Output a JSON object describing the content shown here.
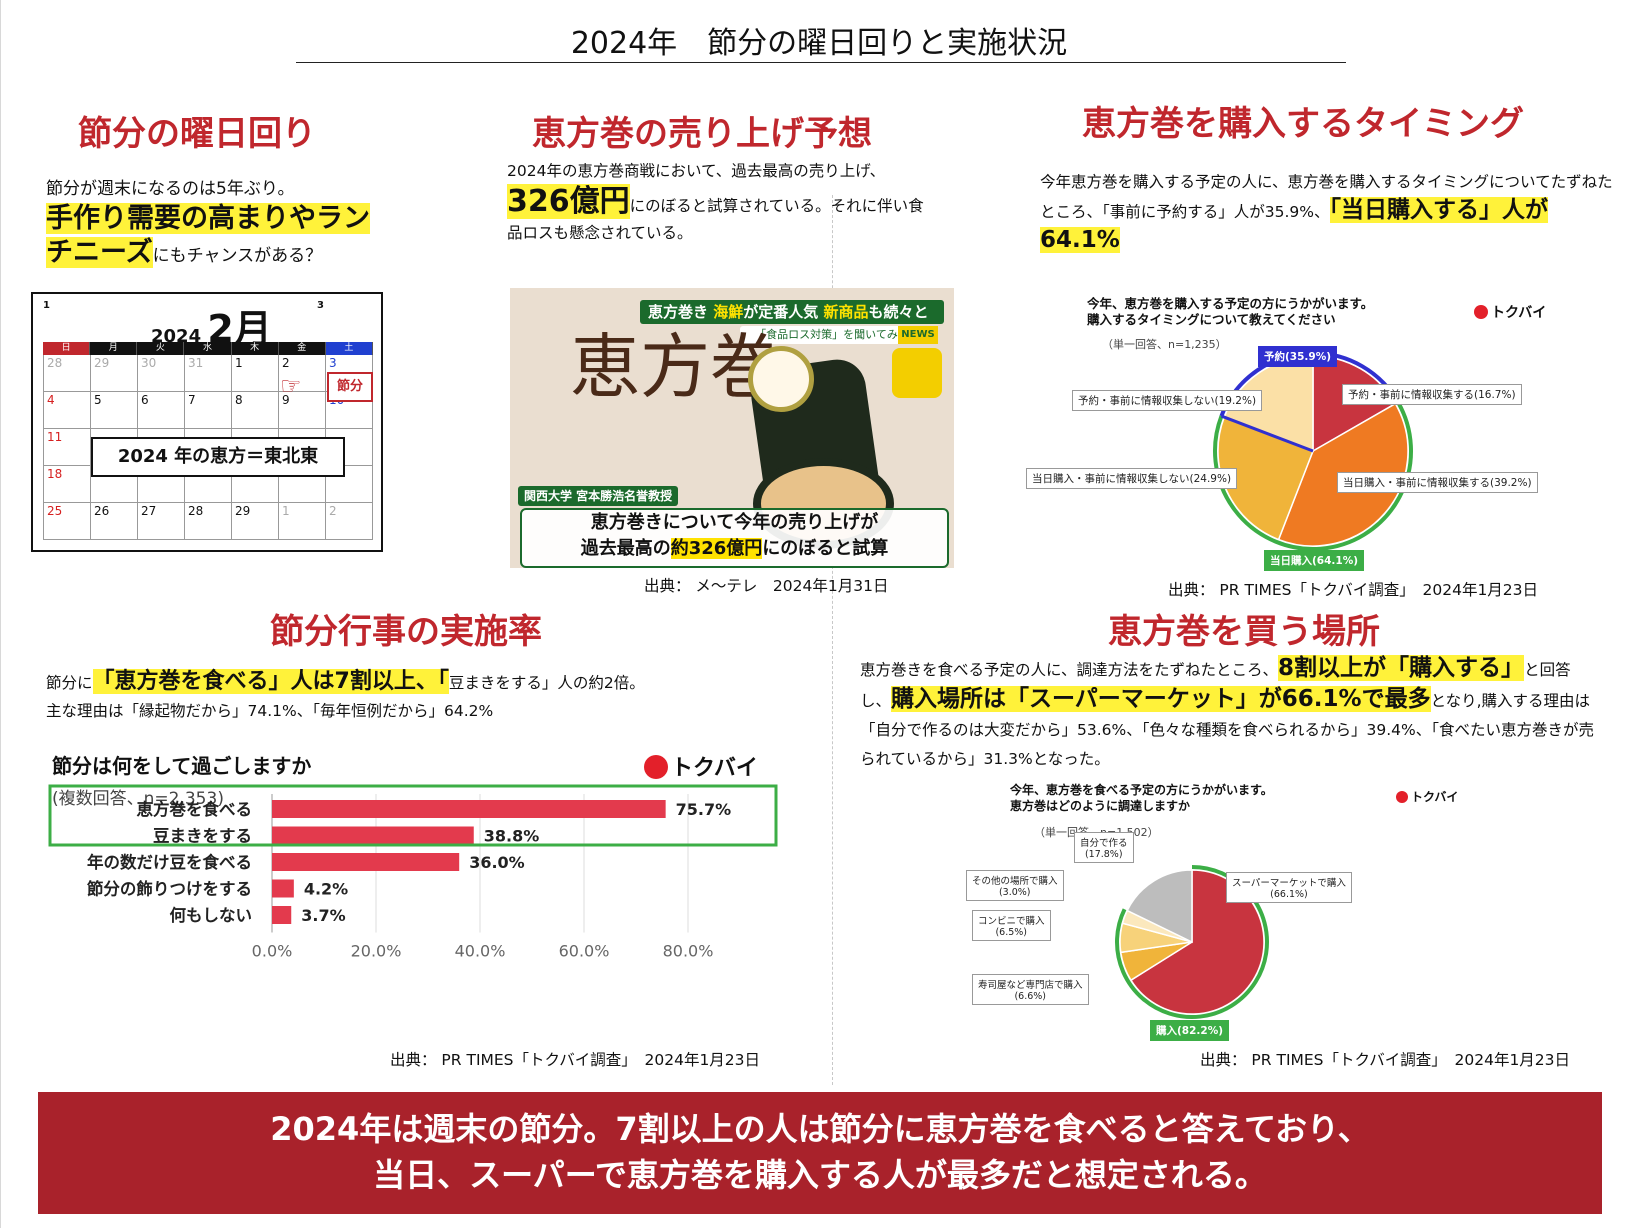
{
  "page_title": "2024年　節分の曜日回りと実施状況",
  "sections": {
    "youbi": {
      "title": "節分の曜日回り",
      "text1": "節分が週末になるのは5年ぶり。",
      "highlight": "手作り需要の高まりやランチニーズ",
      "text2": "にもチャンスがある？",
      "calendar": {
        "year": "2024",
        "month": "2月",
        "weekdays": [
          "日",
          "月",
          "火",
          "水",
          "木",
          "金",
          "土"
        ],
        "rows": [
          [
            "28",
            "29",
            "30",
            "31",
            "1",
            "2",
            "3"
          ],
          [
            "4",
            "5",
            "6",
            "7",
            "8",
            "9",
            "10"
          ],
          [
            "11",
            "",
            "",
            "",
            "",
            "",
            ""
          ],
          [
            "18",
            "",
            "",
            "",
            "",
            "",
            ""
          ],
          [
            "25",
            "26",
            "27",
            "28",
            "29",
            "1",
            "2"
          ]
        ],
        "setsubun_tag": "節分",
        "ehou_box": "2024 年の恵方＝東北東",
        "mini_prev": "1",
        "mini_next": "3"
      }
    },
    "uriage": {
      "title": "恵方巻の売り上げ予想",
      "text1": "2024年の恵方巻商戦において、過去最高の売り上げ、",
      "highlight": "326億円",
      "text2": "にのぼると試算されている。それに伴い食品ロスも懸念されている。",
      "tv": {
        "headline_a": "恵方巻き",
        "headline_b": "海鮮",
        "headline_c": "が定番人気",
        "headline_d": "新商品",
        "headline_e": "も続々と",
        "sub": "「食品ロス対策」を聞いてみると",
        "news": "NEWS",
        "ehou_chars": "恵方巻",
        "prof": "関西大学 宮本勝浩名誉教授",
        "caption1": "恵方巻きについて今年の売り上げが",
        "caption2a": "過去最高の",
        "caption2b": "約326億円",
        "caption2c": "にのぼると試算"
      },
      "source": "出典：  メ〜テレ　2024年1月31日"
    },
    "timing": {
      "title": "恵方巻を購入するタイミング",
      "text1": "今年恵方巻を購入する予定の人に、恵方巻を購入するタイミングについてたずねたところ、「事前に予約する」人が35.9%、",
      "highlight": "「当日購入する」人が64.1%",
      "chart_title1": "今年、恵方巻を購入する予定の方にうかがいます。",
      "chart_title2": "購入するタイミングについて教えてください",
      "chart_note": "（単一回答、n=1,235）",
      "brand": "トクバイ",
      "source": "出典：  PR TIMES「トクバイ調査」　2024年1月23日"
    },
    "jisshi": {
      "title": "節分行事の実施率",
      "text_pre": "節分に",
      "highlight": "「恵方巻を食べる」人は7割以上、「",
      "text_post": "豆まきをする」人の約2倍。",
      "text2": "主な理由は「縁起物だから」74.1%、「毎年恒例だから」64.2%",
      "chart_title": "節分は何をして過ごしますか",
      "chart_note": "(複数回答、n=2,353)",
      "brand": "トクバイ",
      "source": "出典：  PR TIMES「トクバイ調査」　2024年1月23日"
    },
    "basho": {
      "title": "恵方巻を買う場所",
      "text1": "恵方巻きを食べる予定の人に、調達方法をたずねたところ、",
      "highlight1": "8割以上が「購入する」",
      "text2": "と回答し、",
      "highlight2": "購入場所は「スーパーマーケット」が66.1%で最多",
      "text3": "となり,購入する理由は「自分で作るのは大変だから」53.6%、「色々な種類を食べられるから」39.4%、「食べたい恵方巻きが売られているから」31.3%となった。",
      "chart_title1": "今年、恵方巻を食べる予定の方にうかがいます。",
      "chart_title2": "恵方巻はどのように調達しますか",
      "chart_note": "（単一回答、n=1,502）",
      "brand": "トクバイ",
      "source": "出典：  PR TIMES「トクバイ調査」　2024年1月23日"
    }
  },
  "banner": {
    "line1": "2024年は週末の節分。7割以上の人は節分に恵方巻を食べると答えており、",
    "line2": "当日、スーパーで恵方巻を購入する人が最多だと想定される。"
  },
  "chart_data": [
    {
      "type": "pie",
      "title": "今年、恵方巻を購入する予定の方にうかがいます。購入するタイミングについて教えてください",
      "categories": [
        "予約・事前に情報収集する",
        "当日購入・事前に情報収集する",
        "当日購入・事前に情報収集しない",
        "予約・事前に情報収集しない"
      ],
      "values": [
        16.7,
        39.2,
        24.9,
        19.2
      ],
      "labels": [
        "予約・事前に情報収集する(16.7%)",
        "当日購入・事前に情報収集する(39.2%)",
        "当日購入・事前に情報収集しない(24.9%)",
        "予約・事前に情報収集しない(19.2%)"
      ],
      "groups": [
        {
          "label": "予約(35.9%)",
          "value": 35.9
        },
        {
          "label": "当日購入(64.1%)",
          "value": 64.1
        }
      ],
      "colors": [
        "#c8343f",
        "#ef7a22",
        "#f0b43a",
        "#fbe0a6"
      ]
    },
    {
      "type": "bar",
      "title": "節分は何をして過ごしますか",
      "categories": [
        "恵方巻を食べる",
        "豆まきをする",
        "年の数だけ豆を食べる",
        "節分の飾りつけをする",
        "何もしない"
      ],
      "values": [
        75.7,
        38.8,
        36.0,
        4.2,
        3.7
      ],
      "value_labels": [
        "75.7%",
        "38.8%",
        "36.0%",
        "4.2%",
        "3.7%"
      ],
      "xticks": [
        "0.0%",
        "20.0%",
        "40.0%",
        "60.0%",
        "80.0%"
      ],
      "xlim": [
        0,
        80
      ],
      "color": "#e33a4d"
    },
    {
      "type": "pie",
      "title": "今年、恵方巻を食べる予定の方にうかがいます。恵方巻はどのように調達しますか",
      "categories": [
        "スーパーマーケットで購入",
        "寿司屋など専門店で購入",
        "コンビニで購入",
        "その他の場所で購入",
        "自分で作る"
      ],
      "values": [
        66.1,
        6.6,
        6.5,
        3.0,
        17.8
      ],
      "labels": [
        "スーパーマーケットで購入\n(66.1%)",
        "寿司屋など専門店で購入\n(6.6%)",
        "コンビニで購入\n(6.5%)",
        "その他の場所で購入\n(3.0%)",
        "自分で作る\n(17.8%)"
      ],
      "groups": [
        {
          "label": "購入(82.2%)",
          "value": 82.2
        }
      ],
      "colors": [
        "#c8343f",
        "#f0b43a",
        "#f7d27a",
        "#fbe8bd",
        "#bdbdbd"
      ]
    }
  ]
}
